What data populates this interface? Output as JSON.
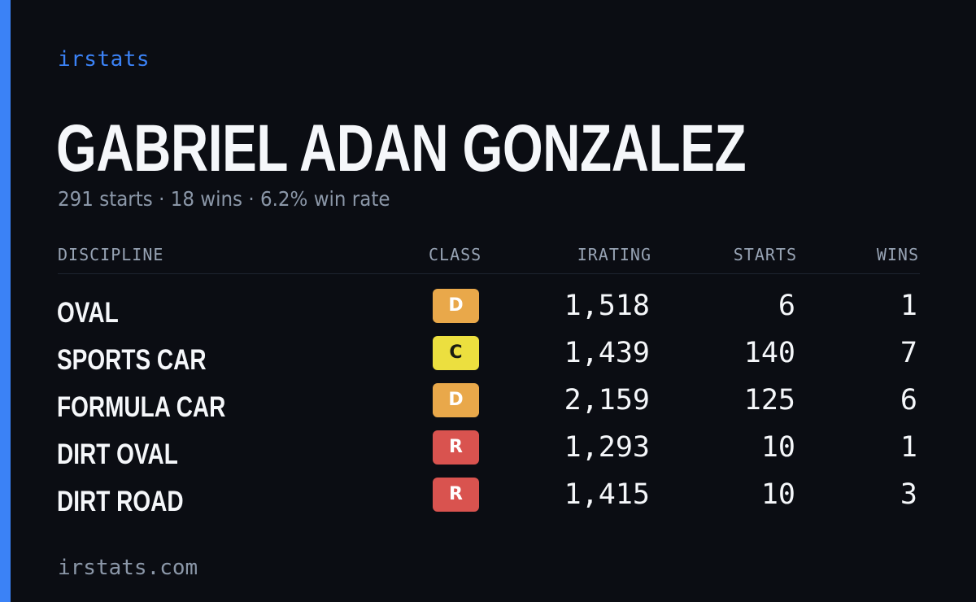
{
  "colors": {
    "background": "#0b0d13",
    "accent": "#3b82f6",
    "class_d": "#e9a84a",
    "class_c": "#ecdf3f",
    "class_r": "#d9534f"
  },
  "header": {
    "brand": "irstats"
  },
  "player": {
    "name": "GABRIEL ADAN GONZALEZ",
    "summary": "291 starts · 18 wins · 6.2% win rate"
  },
  "table": {
    "columns": [
      "DISCIPLINE",
      "CLASS",
      "IRATING",
      "STARTS",
      "WINS"
    ],
    "rows": [
      {
        "discipline": "OVAL",
        "class": "D",
        "irating": "1,518",
        "starts": "6",
        "wins": "1"
      },
      {
        "discipline": "SPORTS CAR",
        "class": "C",
        "irating": "1,439",
        "starts": "140",
        "wins": "7"
      },
      {
        "discipline": "FORMULA CAR",
        "class": "D",
        "irating": "2,159",
        "starts": "125",
        "wins": "6"
      },
      {
        "discipline": "DIRT OVAL",
        "class": "R",
        "irating": "1,293",
        "starts": "10",
        "wins": "1"
      },
      {
        "discipline": "DIRT ROAD",
        "class": "R",
        "irating": "1,415",
        "starts": "10",
        "wins": "3"
      }
    ]
  },
  "footer": {
    "url": "irstats.com"
  }
}
